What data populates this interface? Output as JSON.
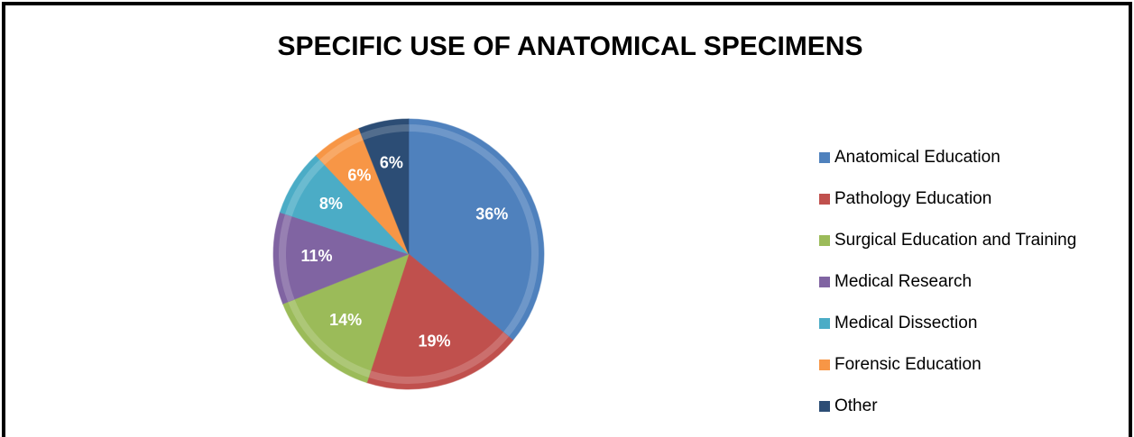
{
  "chart_data": {
    "type": "pie",
    "title": "SPECIFIC USE OF ANATOMICAL SPECIMENS",
    "categories": [
      "Anatomical Education",
      "Pathology Education",
      "Surgical Education and Training",
      "Medical Research",
      "Medical Dissection",
      "Forensic Education",
      "Other"
    ],
    "values": [
      36,
      19,
      14,
      11,
      8,
      6,
      6
    ],
    "value_labels": [
      "36%",
      "19%",
      "14%",
      "11%",
      "8%",
      "6%",
      "6%"
    ],
    "colors": [
      "#4f81bd",
      "#c0504d",
      "#9bbb59",
      "#8064a2",
      "#4bacc6",
      "#f79646",
      "#2c4d75"
    ],
    "legend": "right"
  }
}
